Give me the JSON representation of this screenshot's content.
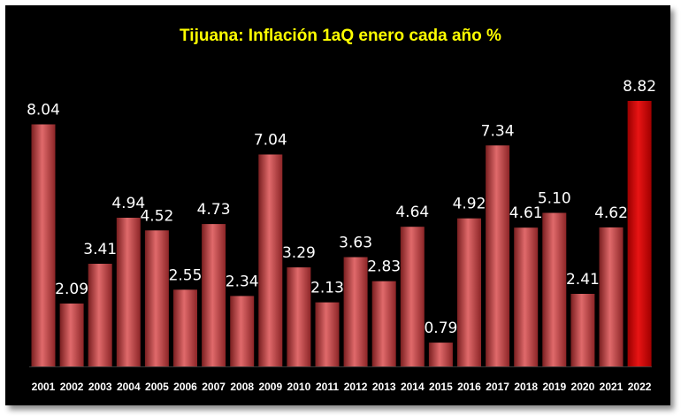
{
  "chart_data": {
    "type": "bar",
    "title": "Tijuana: Inflación 1aQ enero cada año %",
    "categories": [
      "2001",
      "2002",
      "2003",
      "2004",
      "2005",
      "2006",
      "2007",
      "2008",
      "2009",
      "2010",
      "2011",
      "2012",
      "2013",
      "2014",
      "2015",
      "2016",
      "2017",
      "2018",
      "2019",
      "2020",
      "2021",
      "2022"
    ],
    "values": [
      8.04,
      2.09,
      3.41,
      4.94,
      4.52,
      2.55,
      4.73,
      2.34,
      7.04,
      3.29,
      2.13,
      3.63,
      2.83,
      4.64,
      0.79,
      4.92,
      7.34,
      4.61,
      5.1,
      2.41,
      4.62,
      8.82
    ],
    "value_labels": [
      "8.04",
      "2.09",
      "3.41",
      "4.94",
      "4.52",
      "2.55",
      "4.73",
      "2.34",
      "7.04",
      "3.29",
      "2.13",
      "3.63",
      "2.83",
      "4.64",
      "0.79",
      "4.92",
      "7.34",
      "4.61",
      "5.10",
      "2.41",
      "4.62",
      "8.82"
    ],
    "xlabel": "",
    "ylabel": "",
    "ylim": [
      0,
      10
    ],
    "grid": false,
    "colors": {
      "background": "#000000",
      "bar": "#c0393b",
      "highlight_bar": "#cc0000",
      "title": "#ffff00",
      "text": "#ffffff"
    },
    "highlight_category": "2022"
  }
}
